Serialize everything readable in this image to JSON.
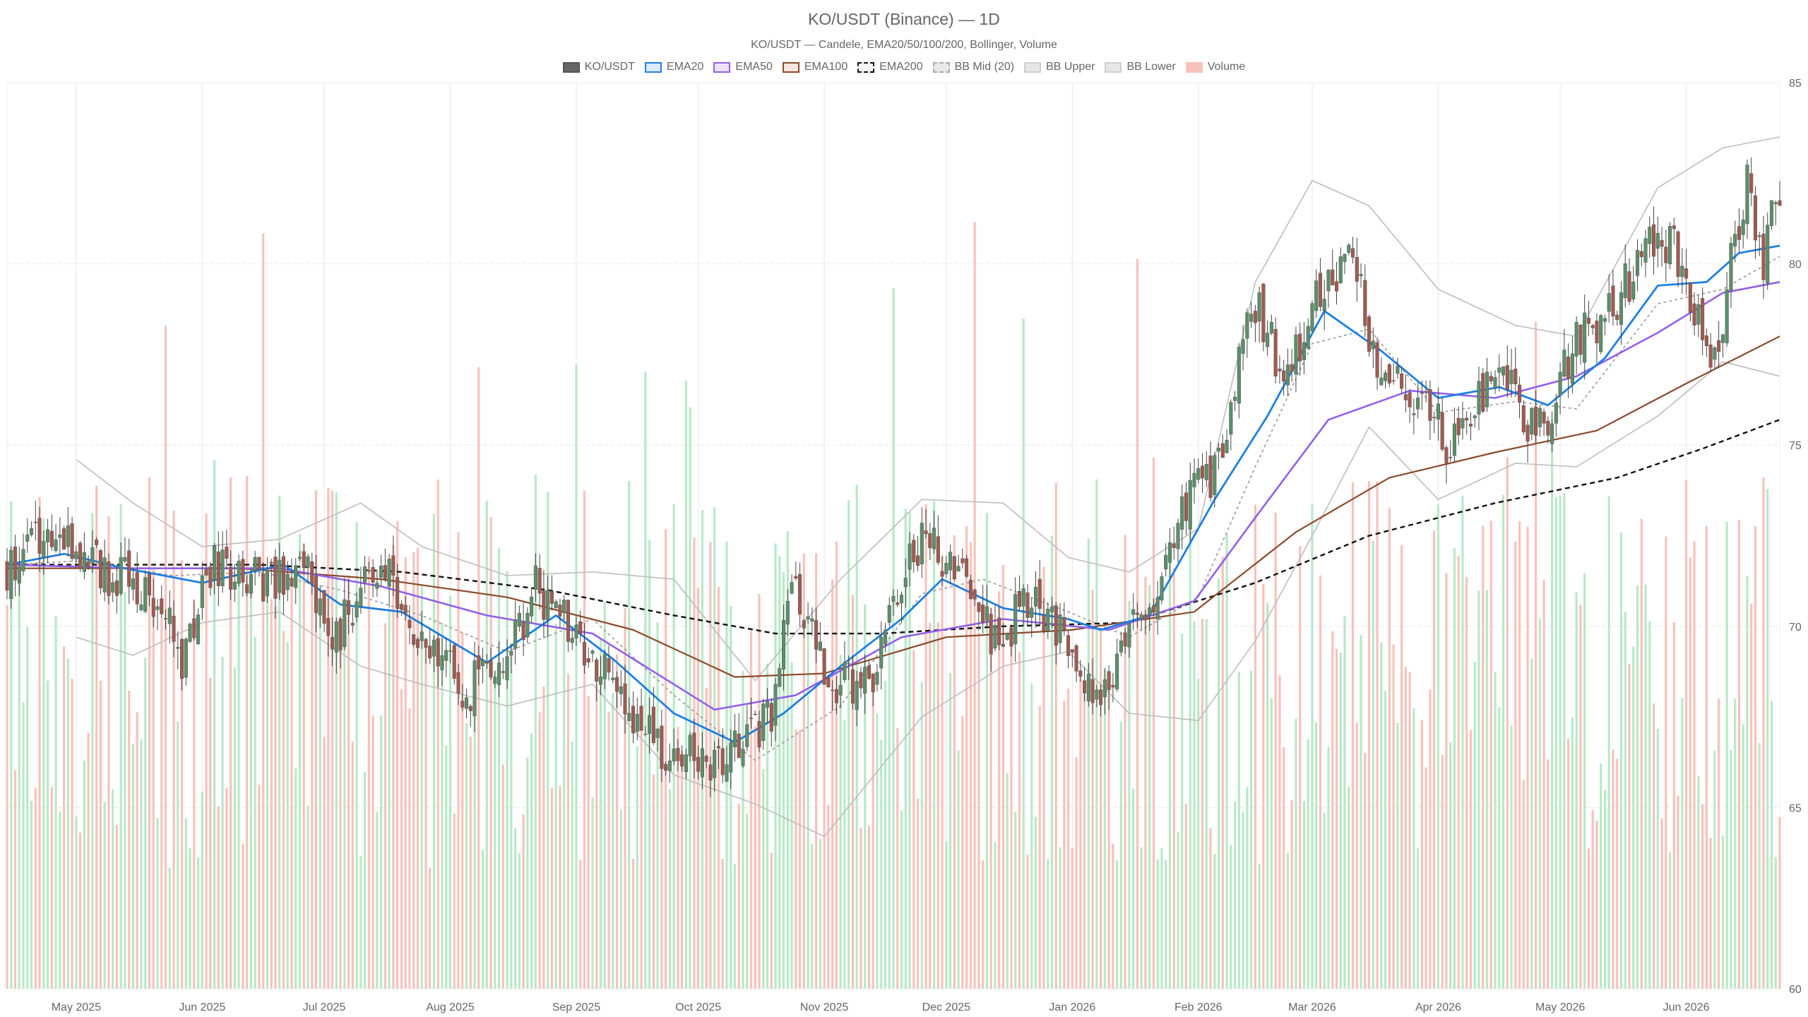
{
  "colors": {
    "up": "#5b8f69",
    "down": "#a25a4f",
    "ema20": "#1e7fe0",
    "ema50": "#9260e8",
    "ema100": "#8a4a2a",
    "ema200": "#111111",
    "bb": "#bdbdbd",
    "vol_up": "#b9e8c8",
    "vol_down": "#f7c2bb",
    "grid": "#e6e6e6"
  },
  "chart_data": {
    "type": "candlestick",
    "title": "KO/USDT (Binance) — 1D",
    "subtitle": "KO/USDT — Candele, EMA20/50/100/200, Bollinger, Volume",
    "legend": [
      {
        "name": "KO/USDT",
        "swatch": "candle"
      },
      {
        "name": "EMA20",
        "swatch": "ema20"
      },
      {
        "name": "EMA50",
        "swatch": "ema50"
      },
      {
        "name": "EMA100",
        "swatch": "ema100"
      },
      {
        "name": "EMA200",
        "swatch": "ema200"
      },
      {
        "name": "BB Mid (20)",
        "swatch": "bbmid"
      },
      {
        "name": "BB Upper",
        "swatch": "bb"
      },
      {
        "name": "BB Lower",
        "swatch": "bb"
      },
      {
        "name": "Volume",
        "swatch": "volume"
      }
    ],
    "legend_placement": "top-center",
    "x_range": [
      "2025-04-14",
      "2026-06-24"
    ],
    "x_ticks": [
      {
        "date": "2025-05-01",
        "label": "May 2025"
      },
      {
        "date": "2025-06-01",
        "label": "Jun 2025"
      },
      {
        "date": "2025-07-01",
        "label": "Jul 2025"
      },
      {
        "date": "2025-08-01",
        "label": "Aug 2025"
      },
      {
        "date": "2025-09-01",
        "label": "Sep 2025"
      },
      {
        "date": "2025-10-01",
        "label": "Oct 2025"
      },
      {
        "date": "2025-11-01",
        "label": "Nov 2025"
      },
      {
        "date": "2025-12-01",
        "label": "Dec 2025"
      },
      {
        "date": "2026-01-01",
        "label": "Jan 2026"
      },
      {
        "date": "2026-02-01",
        "label": "Feb 2026"
      },
      {
        "date": "2026-03-01",
        "label": "Mar 2026"
      },
      {
        "date": "2026-04-01",
        "label": "Apr 2026"
      },
      {
        "date": "2026-05-01",
        "label": "May 2026"
      },
      {
        "date": "2026-06-01",
        "label": "Jun 2026"
      }
    ],
    "y_range": [
      60,
      85
    ],
    "y_ticks": [
      60,
      65,
      70,
      75,
      80,
      85
    ],
    "y_axis_side": "right",
    "grid": true,
    "close_path": [
      [
        "2025-04-14",
        71.6
      ],
      [
        "2025-04-24",
        72.6
      ],
      [
        "2025-05-05",
        71.8
      ],
      [
        "2025-05-12",
        71.3
      ],
      [
        "2025-05-22",
        70.4
      ],
      [
        "2025-05-27",
        69.2
      ],
      [
        "2025-06-03",
        71.6
      ],
      [
        "2025-06-20",
        71.2
      ],
      [
        "2025-06-25",
        72.2
      ],
      [
        "2025-07-02",
        69.4
      ],
      [
        "2025-07-10",
        70.9
      ],
      [
        "2025-07-17",
        71.5
      ],
      [
        "2025-07-28",
        69.1
      ],
      [
        "2025-08-05",
        68.2
      ],
      [
        "2025-08-14",
        69.1
      ],
      [
        "2025-08-22",
        71.0
      ],
      [
        "2025-08-27",
        70.6
      ],
      [
        "2025-09-05",
        69.0
      ],
      [
        "2025-09-12",
        68.2
      ],
      [
        "2025-09-22",
        66.6
      ],
      [
        "2025-10-03",
        66.3
      ],
      [
        "2025-10-13",
        66.9
      ],
      [
        "2025-10-20",
        67.9
      ],
      [
        "2025-10-24",
        71.1
      ],
      [
        "2025-11-03",
        68.5
      ],
      [
        "2025-11-12",
        68.3
      ],
      [
        "2025-11-20",
        71.5
      ],
      [
        "2025-11-25",
        72.5
      ],
      [
        "2025-12-01",
        71.8
      ],
      [
        "2025-12-08",
        70.8
      ],
      [
        "2025-12-14",
        69.4
      ],
      [
        "2025-12-22",
        71.0
      ],
      [
        "2025-12-29",
        69.9
      ],
      [
        "2026-01-08",
        67.6
      ],
      [
        "2026-01-14",
        69.8
      ],
      [
        "2026-01-22",
        71.2
      ],
      [
        "2026-01-29",
        73.4
      ],
      [
        "2026-02-05",
        74.2
      ],
      [
        "2026-02-11",
        77.4
      ],
      [
        "2026-02-16",
        78.9
      ],
      [
        "2026-02-21",
        77.1
      ],
      [
        "2026-02-27",
        78.1
      ],
      [
        "2026-03-05",
        79.6
      ],
      [
        "2026-03-11",
        80.3
      ],
      [
        "2026-03-16",
        77.6
      ],
      [
        "2026-03-23",
        76.7
      ],
      [
        "2026-03-29",
        75.9
      ],
      [
        "2026-04-03",
        75.2
      ],
      [
        "2026-04-10",
        76.2
      ],
      [
        "2026-04-17",
        76.9
      ],
      [
        "2026-04-23",
        75.6
      ],
      [
        "2026-04-28",
        75.5
      ],
      [
        "2026-05-04",
        77.8
      ],
      [
        "2026-05-11",
        78.3
      ],
      [
        "2026-05-17",
        79.4
      ],
      [
        "2026-05-23",
        80.9
      ],
      [
        "2026-05-29",
        80.5
      ],
      [
        "2026-06-04",
        78.2
      ],
      [
        "2026-06-08",
        77.3
      ],
      [
        "2026-06-13",
        80.6
      ],
      [
        "2026-06-16",
        82.5
      ],
      [
        "2026-06-20",
        80.1
      ],
      [
        "2026-06-24",
        82.1
      ]
    ],
    "volume_range": [
      0,
      15000
    ],
    "series": [
      {
        "name": "EMA20",
        "points": [
          [
            "2025-04-14",
            71.7
          ],
          [
            "2025-04-28",
            72.0
          ],
          [
            "2025-05-13",
            71.6
          ],
          [
            "2025-06-01",
            71.2
          ],
          [
            "2025-06-21",
            71.7
          ],
          [
            "2025-07-05",
            70.6
          ],
          [
            "2025-07-20",
            70.4
          ],
          [
            "2025-08-10",
            69.0
          ],
          [
            "2025-08-27",
            70.3
          ],
          [
            "2025-09-10",
            69.1
          ],
          [
            "2025-09-25",
            67.6
          ],
          [
            "2025-10-10",
            66.8
          ],
          [
            "2025-10-22",
            67.6
          ],
          [
            "2025-11-05",
            68.9
          ],
          [
            "2025-11-20",
            70.2
          ],
          [
            "2025-11-30",
            71.3
          ],
          [
            "2025-12-15",
            70.5
          ],
          [
            "2025-12-31",
            70.2
          ],
          [
            "2026-01-08",
            69.9
          ],
          [
            "2026-01-20",
            70.3
          ],
          [
            "2026-02-05",
            73.5
          ],
          [
            "2026-02-18",
            75.8
          ],
          [
            "2026-03-04",
            78.7
          ],
          [
            "2026-03-18",
            77.6
          ],
          [
            "2026-04-01",
            76.3
          ],
          [
            "2026-04-16",
            76.6
          ],
          [
            "2026-04-28",
            76.1
          ],
          [
            "2026-05-12",
            77.4
          ],
          [
            "2026-05-25",
            79.4
          ],
          [
            "2026-06-06",
            79.5
          ],
          [
            "2026-06-14",
            80.3
          ],
          [
            "2026-06-24",
            80.5
          ]
        ]
      },
      {
        "name": "EMA50",
        "points": [
          [
            "2025-04-14",
            71.7
          ],
          [
            "2025-05-15",
            71.6
          ],
          [
            "2025-06-20",
            71.6
          ],
          [
            "2025-07-15",
            71.1
          ],
          [
            "2025-08-10",
            70.3
          ],
          [
            "2025-09-05",
            69.8
          ],
          [
            "2025-10-05",
            67.7
          ],
          [
            "2025-10-25",
            68.1
          ],
          [
            "2025-11-20",
            69.7
          ],
          [
            "2025-12-15",
            70.2
          ],
          [
            "2026-01-10",
            69.9
          ],
          [
            "2026-01-31",
            70.7
          ],
          [
            "2026-02-15",
            73.0
          ],
          [
            "2026-03-05",
            75.7
          ],
          [
            "2026-03-25",
            76.5
          ],
          [
            "2026-04-15",
            76.3
          ],
          [
            "2026-05-05",
            76.9
          ],
          [
            "2026-05-25",
            78.1
          ],
          [
            "2026-06-10",
            79.2
          ],
          [
            "2026-06-24",
            79.5
          ]
        ]
      },
      {
        "name": "EMA100",
        "points": [
          [
            "2025-04-14",
            71.6
          ],
          [
            "2025-06-10",
            71.6
          ],
          [
            "2025-07-15",
            71.3
          ],
          [
            "2025-08-15",
            70.8
          ],
          [
            "2025-09-15",
            69.9
          ],
          [
            "2025-10-10",
            68.6
          ],
          [
            "2025-11-01",
            68.7
          ],
          [
            "2025-12-01",
            69.7
          ],
          [
            "2026-01-01",
            69.9
          ],
          [
            "2026-01-31",
            70.4
          ],
          [
            "2026-02-25",
            72.6
          ],
          [
            "2026-03-20",
            74.1
          ],
          [
            "2026-04-15",
            74.8
          ],
          [
            "2026-05-10",
            75.4
          ],
          [
            "2026-06-01",
            76.7
          ],
          [
            "2026-06-24",
            78.0
          ]
        ]
      },
      {
        "name": "EMA200",
        "points": [
          [
            "2025-04-14",
            71.7
          ],
          [
            "2025-06-15",
            71.7
          ],
          [
            "2025-07-20",
            71.5
          ],
          [
            "2025-08-25",
            71.0
          ],
          [
            "2025-09-25",
            70.3
          ],
          [
            "2025-10-20",
            69.8
          ],
          [
            "2025-11-15",
            69.8
          ],
          [
            "2025-12-15",
            70.0
          ],
          [
            "2026-01-15",
            70.1
          ],
          [
            "2026-02-15",
            71.2
          ],
          [
            "2026-03-15",
            72.5
          ],
          [
            "2026-04-15",
            73.4
          ],
          [
            "2026-05-15",
            74.1
          ],
          [
            "2026-06-05",
            74.9
          ],
          [
            "2026-06-24",
            75.7
          ]
        ]
      },
      {
        "name": "BB Mid (20)",
        "points": [
          [
            "2025-04-14",
            71.7
          ],
          [
            "2025-05-01",
            71.8
          ],
          [
            "2025-05-25",
            71.4
          ],
          [
            "2025-06-15",
            71.5
          ],
          [
            "2025-07-05",
            71.0
          ],
          [
            "2025-07-25",
            70.3
          ],
          [
            "2025-08-15",
            69.3
          ],
          [
            "2025-09-05",
            70.2
          ],
          [
            "2025-09-25",
            68.1
          ],
          [
            "2025-10-15",
            66.3
          ],
          [
            "2025-11-05",
            67.8
          ],
          [
            "2025-11-25",
            70.9
          ],
          [
            "2025-12-10",
            71.3
          ],
          [
            "2025-12-31",
            70.4
          ],
          [
            "2026-01-15",
            69.7
          ],
          [
            "2026-02-01",
            70.8
          ],
          [
            "2026-02-15",
            74.4
          ],
          [
            "2026-03-01",
            77.8
          ],
          [
            "2026-03-15",
            78.2
          ],
          [
            "2026-04-01",
            75.9
          ],
          [
            "2026-04-20",
            76.2
          ],
          [
            "2026-05-05",
            76.0
          ],
          [
            "2026-05-25",
            78.9
          ],
          [
            "2026-06-10",
            79.3
          ],
          [
            "2026-06-24",
            80.2
          ]
        ]
      },
      {
        "name": "BB Upper",
        "points": [
          [
            "2025-05-01",
            74.6
          ],
          [
            "2025-05-15",
            73.4
          ],
          [
            "2025-06-01",
            72.2
          ],
          [
            "2025-06-20",
            72.4
          ],
          [
            "2025-07-10",
            73.4
          ],
          [
            "2025-07-25",
            72.2
          ],
          [
            "2025-08-15",
            71.4
          ],
          [
            "2025-09-05",
            71.5
          ],
          [
            "2025-09-25",
            71.3
          ],
          [
            "2025-10-15",
            68.5
          ],
          [
            "2025-11-05",
            71.3
          ],
          [
            "2025-11-25",
            73.5
          ],
          [
            "2025-12-15",
            73.4
          ],
          [
            "2025-12-31",
            71.9
          ],
          [
            "2026-01-15",
            71.5
          ],
          [
            "2026-02-01",
            72.7
          ],
          [
            "2026-02-15",
            79.5
          ],
          [
            "2026-03-01",
            82.3
          ],
          [
            "2026-03-15",
            81.6
          ],
          [
            "2026-04-01",
            79.3
          ],
          [
            "2026-04-20",
            78.3
          ],
          [
            "2026-05-05",
            78.0
          ],
          [
            "2026-05-25",
            82.1
          ],
          [
            "2026-06-10",
            83.2
          ],
          [
            "2026-06-24",
            83.5
          ]
        ]
      },
      {
        "name": "BB Lower",
        "points": [
          [
            "2025-05-01",
            69.7
          ],
          [
            "2025-05-15",
            69.2
          ],
          [
            "2025-06-01",
            70.1
          ],
          [
            "2025-06-20",
            70.4
          ],
          [
            "2025-07-10",
            68.9
          ],
          [
            "2025-07-25",
            68.4
          ],
          [
            "2025-08-15",
            67.8
          ],
          [
            "2025-09-05",
            68.4
          ],
          [
            "2025-09-25",
            65.9
          ],
          [
            "2025-10-15",
            65.1
          ],
          [
            "2025-11-01",
            64.2
          ],
          [
            "2025-11-25",
            67.5
          ],
          [
            "2025-12-15",
            68.9
          ],
          [
            "2025-12-31",
            69.3
          ],
          [
            "2026-01-15",
            67.6
          ],
          [
            "2026-02-01",
            67.4
          ],
          [
            "2026-02-15",
            69.6
          ],
          [
            "2026-03-01",
            72.5
          ],
          [
            "2026-03-15",
            75.5
          ],
          [
            "2026-04-01",
            73.5
          ],
          [
            "2026-04-20",
            74.5
          ],
          [
            "2026-05-05",
            74.4
          ],
          [
            "2026-05-25",
            75.8
          ],
          [
            "2026-06-10",
            77.3
          ],
          [
            "2026-06-24",
            76.9
          ]
        ]
      }
    ]
  }
}
